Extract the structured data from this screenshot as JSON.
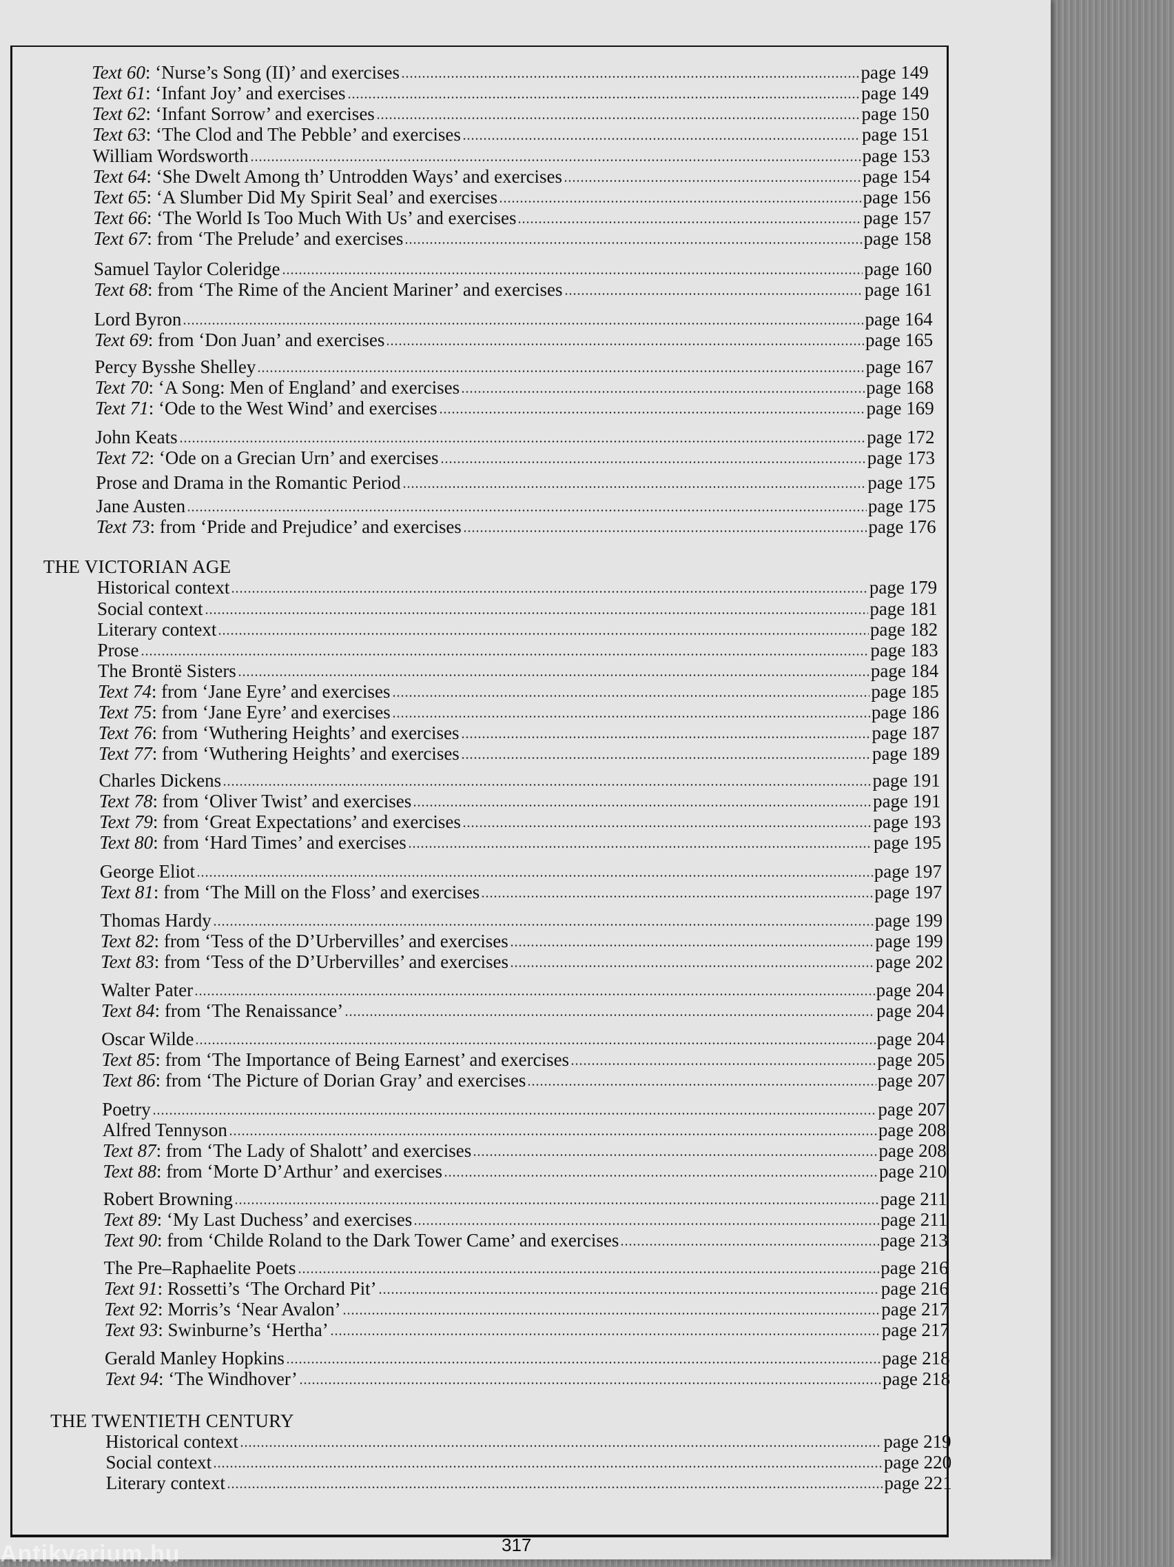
{
  "page_number": "317",
  "watermark": "Antikvarium.hu",
  "rows": [
    {
      "num": "Text 60",
      "title": ": ‘Nurse’s Song (II)’ and exercises",
      "page": "page 149"
    },
    {
      "num": "Text 61",
      "title": ": ‘Infant Joy’ and exercises",
      "page": "page 149"
    },
    {
      "num": "Text 62",
      "title": ": ‘Infant Sorrow’ and exercises",
      "page": "page 150"
    },
    {
      "num": "Text 63",
      "title": ": ‘The Clod and The Pebble’ and exercises",
      "page": "page 151"
    },
    {
      "title": "William Wordsworth",
      "page": "page 153"
    },
    {
      "num": "Text 64",
      "title": ": ‘She Dwelt Among th’ Untrodden Ways’ and exercises",
      "page": "page 154"
    },
    {
      "num": "Text 65",
      "title": ": ‘A Slumber Did My Spirit Seal’ and exercises",
      "page": "page 156"
    },
    {
      "num": "Text 66",
      "title": ": ‘The World Is Too Much With Us’ and exercises",
      "page": "page 157"
    },
    {
      "num": "Text 67",
      "title": ": from ‘The Prelude’ and exercises",
      "page": "page 158"
    },
    {
      "title": "Samuel Taylor Coleridge",
      "page": "page 160"
    },
    {
      "num": "Text 68",
      "title": ": from ‘The Rime of the Ancient Mariner’ and exercises",
      "page": "page 161"
    },
    {
      "title": "Lord Byron",
      "page": "page 164"
    },
    {
      "num": "Text 69",
      "title": ": from ‘Don Juan’ and exercises",
      "page": "page 165"
    },
    {
      "title": "Percy Bysshe Shelley",
      "page": "page 167"
    },
    {
      "num": "Text 70",
      "title": ": ‘A Song: Men of England’ and exercises",
      "page": "page 168"
    },
    {
      "num": "Text 71",
      "title": ": ‘Ode to the West Wind’ and exercises",
      "page": "page 169"
    },
    {
      "title": "John Keats",
      "page": "page 172"
    },
    {
      "num": "Text 72",
      "title": ": ‘Ode on a Grecian Urn’ and exercises",
      "page": "page 173"
    },
    {
      "title": "Prose and Drama in the Romantic Period",
      "page": "page 175"
    },
    {
      "title": "Jane Austen",
      "page": "page 175"
    },
    {
      "num": "Text 73",
      "title": ": from ‘Pride and Prejudice’ and exercises",
      "page": "page 176"
    },
    {
      "heading": "THE VICTORIAN AGE"
    },
    {
      "title": "Historical context",
      "page": "page 179"
    },
    {
      "title": "Social context",
      "page": "page 181"
    },
    {
      "title": "Literary context",
      "page": "page 182"
    },
    {
      "title": "Prose",
      "page": "page 183"
    },
    {
      "title": "The Brontë Sisters",
      "page": "page 184"
    },
    {
      "num": "Text 74",
      "title": ": from ‘Jane Eyre’ and exercises",
      "page": "page 185"
    },
    {
      "num": "Text 75",
      "title": ": from ‘Jane Eyre’ and exercises",
      "page": "page 186"
    },
    {
      "num": "Text 76",
      "title": ": from ‘Wuthering Heights’ and exercises",
      "page": "page 187"
    },
    {
      "num": "Text 77",
      "title": ": from ‘Wuthering Heights’ and exercises",
      "page": "page 189"
    },
    {
      "title": "Charles Dickens",
      "page": "page 191"
    },
    {
      "num": "Text 78",
      "title": ": from ‘Oliver Twist’ and exercises",
      "page": "page 191"
    },
    {
      "num": "Text 79",
      "title": ": from ‘Great Expectations’ and exercises",
      "page": "page 193"
    },
    {
      "num": "Text 80",
      "title": ": from ‘Hard Times’ and exercises",
      "page": "page 195"
    },
    {
      "title": "George Eliot",
      "page": "page 197"
    },
    {
      "num": "Text 81",
      "title": ": from ‘The Mill on the Floss’ and exercises",
      "page": "page 197"
    },
    {
      "title": "Thomas Hardy",
      "page": "page 199"
    },
    {
      "num": "Text 82",
      "title": ": from ‘Tess of the D’Urbervilles’ and exercises",
      "page": "page 199"
    },
    {
      "num": "Text 83",
      "title": ": from ‘Tess of the D’Urbervilles’ and exercises",
      "page": "page 202"
    },
    {
      "title": "Walter Pater",
      "page": "page 204"
    },
    {
      "num": "Text 84",
      "title": ": from ‘The Renaissance’",
      "page": "page 204"
    },
    {
      "title": "Oscar Wilde",
      "page": "page 204"
    },
    {
      "num": "Text 85",
      "title": ": from ‘The Importance of Being Earnest’ and exercises",
      "page": "page 205"
    },
    {
      "num": "Text 86",
      "title": ": from ‘The Picture of Dorian Gray’ and exercises",
      "page": "page 207"
    },
    {
      "title": "Poetry",
      "page": "page 207"
    },
    {
      "title": "Alfred Tennyson",
      "page": "page 208"
    },
    {
      "num": "Text 87",
      "title": ": from ‘The Lady of Shalott’ and exercises",
      "page": "page 208"
    },
    {
      "num": "Text 88",
      "title": ": from ‘Morte D’Arthur’ and exercises",
      "page": "page 210"
    },
    {
      "title": "Robert Browning",
      "page": "page 211"
    },
    {
      "num": "Text 89",
      "title": ": ‘My Last Duchess’ and exercises",
      "page": "page 211"
    },
    {
      "num": "Text 90",
      "title": ": from ‘Childe Roland to the Dark Tower Came’ and exercises",
      "page": "page 213"
    },
    {
      "title": "The Pre–Raphaelite Poets",
      "page": "page 216"
    },
    {
      "num": "Text 91",
      "title": ": Rossetti’s ‘The Orchard Pit’",
      "page": "page 216"
    },
    {
      "num": "Text 92",
      "title": ": Morris’s ‘Near Avalon’",
      "page": "page 217"
    },
    {
      "num": "Text 93",
      "title": ": Swinburne’s ‘Hertha’",
      "page": "page 217"
    },
    {
      "title": "Gerald Manley Hopkins",
      "page": "page 218"
    },
    {
      "num": "Text 94",
      "title": ": ‘The Windhover’",
      "page": "page 218"
    },
    {
      "heading": "THE TWENTIETH CENTURY"
    },
    {
      "title": "Historical context",
      "page": "page 219"
    },
    {
      "title": "Social context",
      "page": "page 220"
    },
    {
      "title": "Literary context",
      "page": "page 221"
    }
  ]
}
